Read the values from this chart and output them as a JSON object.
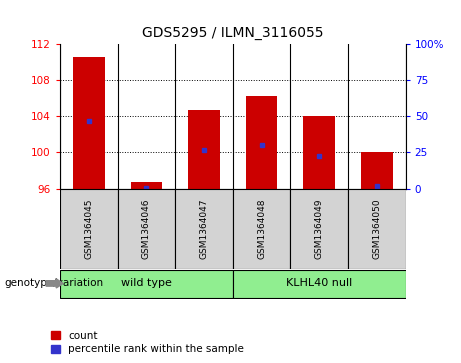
{
  "title": "GDS5295 / ILMN_3116055",
  "categories": [
    "GSM1364045",
    "GSM1364046",
    "GSM1364047",
    "GSM1364048",
    "GSM1364049",
    "GSM1364050"
  ],
  "count_values": [
    110.5,
    96.7,
    104.7,
    106.2,
    104.0,
    100.0
  ],
  "percentile_values": [
    103.5,
    96.1,
    100.3,
    100.8,
    99.6,
    96.3
  ],
  "ylim_left": [
    96,
    112
  ],
  "yticks_left": [
    96,
    100,
    104,
    108,
    112
  ],
  "ylim_right": [
    0,
    100
  ],
  "yticks_right": [
    0,
    25,
    50,
    75,
    100
  ],
  "bar_color": "#cc0000",
  "dot_color": "#3333cc",
  "groups": [
    {
      "label": "wild type",
      "indices": [
        0,
        1,
        2
      ],
      "color": "#90ee90"
    },
    {
      "label": "KLHL40 null",
      "indices": [
        3,
        4,
        5
      ],
      "color": "#90ee90"
    }
  ],
  "group_label_prefix": "genotype/variation",
  "legend_items": [
    {
      "label": "count",
      "color": "#cc0000"
    },
    {
      "label": "percentile rank within the sample",
      "color": "#3333cc"
    }
  ],
  "bar_width": 0.55,
  "bar_base": 96,
  "tick_bg_color": "#d3d3d3",
  "separator_color": "#000000"
}
